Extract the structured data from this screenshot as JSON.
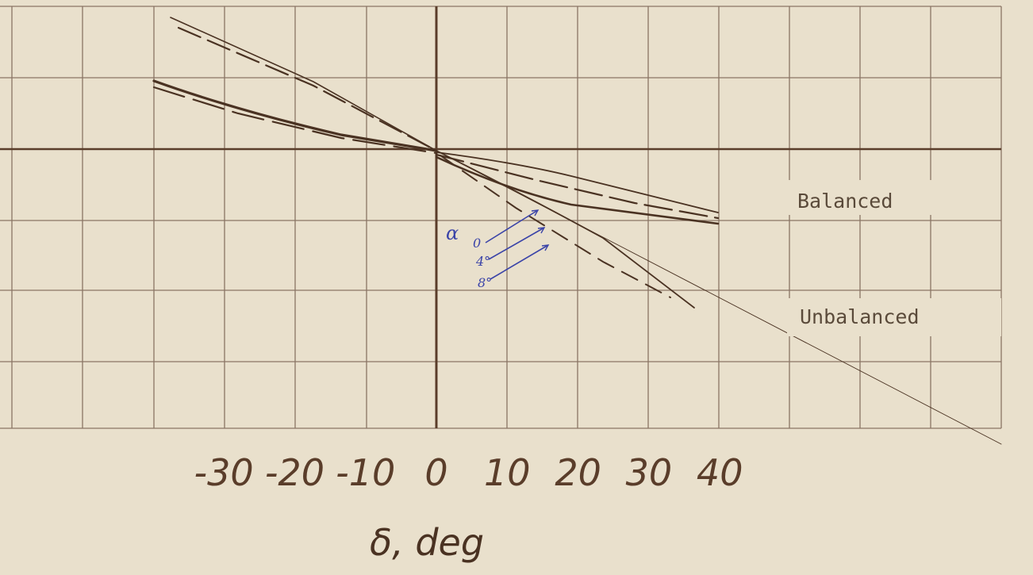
{
  "chart_data": {
    "type": "line",
    "xlabel": "δ, deg",
    "x_ticks": [
      "-30",
      "-20",
      "-10",
      "0",
      "10",
      "20",
      "30",
      "40"
    ],
    "xlim": [
      -30,
      40
    ],
    "grid": true,
    "labels": {
      "balanced": "Balanced",
      "unbalanced": "Unbalanced"
    },
    "alpha_annotation": {
      "symbol": "α",
      "values": [
        "0",
        "4°",
        "8°"
      ]
    },
    "colors": {
      "paper": "#e9e0cc",
      "grid": "#8a7564",
      "ink": "#4a3222",
      "annotation": "#3b44a8"
    }
  }
}
